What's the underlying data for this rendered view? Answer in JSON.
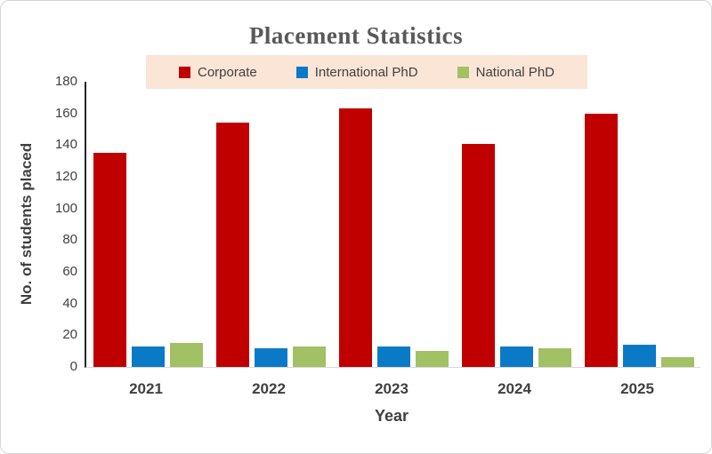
{
  "chart_data": {
    "type": "bar",
    "title": "Placement Statistics",
    "xlabel": "Year",
    "ylabel": "No. of students placed",
    "categories": [
      "2021",
      "2022",
      "2023",
      "2024",
      "2025"
    ],
    "series": [
      {
        "name": "Corporate",
        "color": "#C00000",
        "values": [
          135,
          154,
          163,
          141,
          160
        ]
      },
      {
        "name": "International PhD",
        "color": "#0B7AC6",
        "values": [
          13,
          12,
          13,
          13,
          14
        ]
      },
      {
        "name": "National PhD",
        "color": "#A2C064",
        "values": [
          15,
          13,
          10,
          12,
          6
        ]
      }
    ],
    "ylim": [
      0,
      180
    ],
    "y_ticks": [
      0,
      20,
      40,
      60,
      80,
      100,
      120,
      140,
      160,
      180
    ],
    "grid": false,
    "legend_position": "top",
    "legend_background": "#FBE5D6",
    "title_color": "#595959",
    "text_color": "#404040",
    "axis_line_color": "#262626",
    "baseline_color": "#D9D9D9"
  }
}
